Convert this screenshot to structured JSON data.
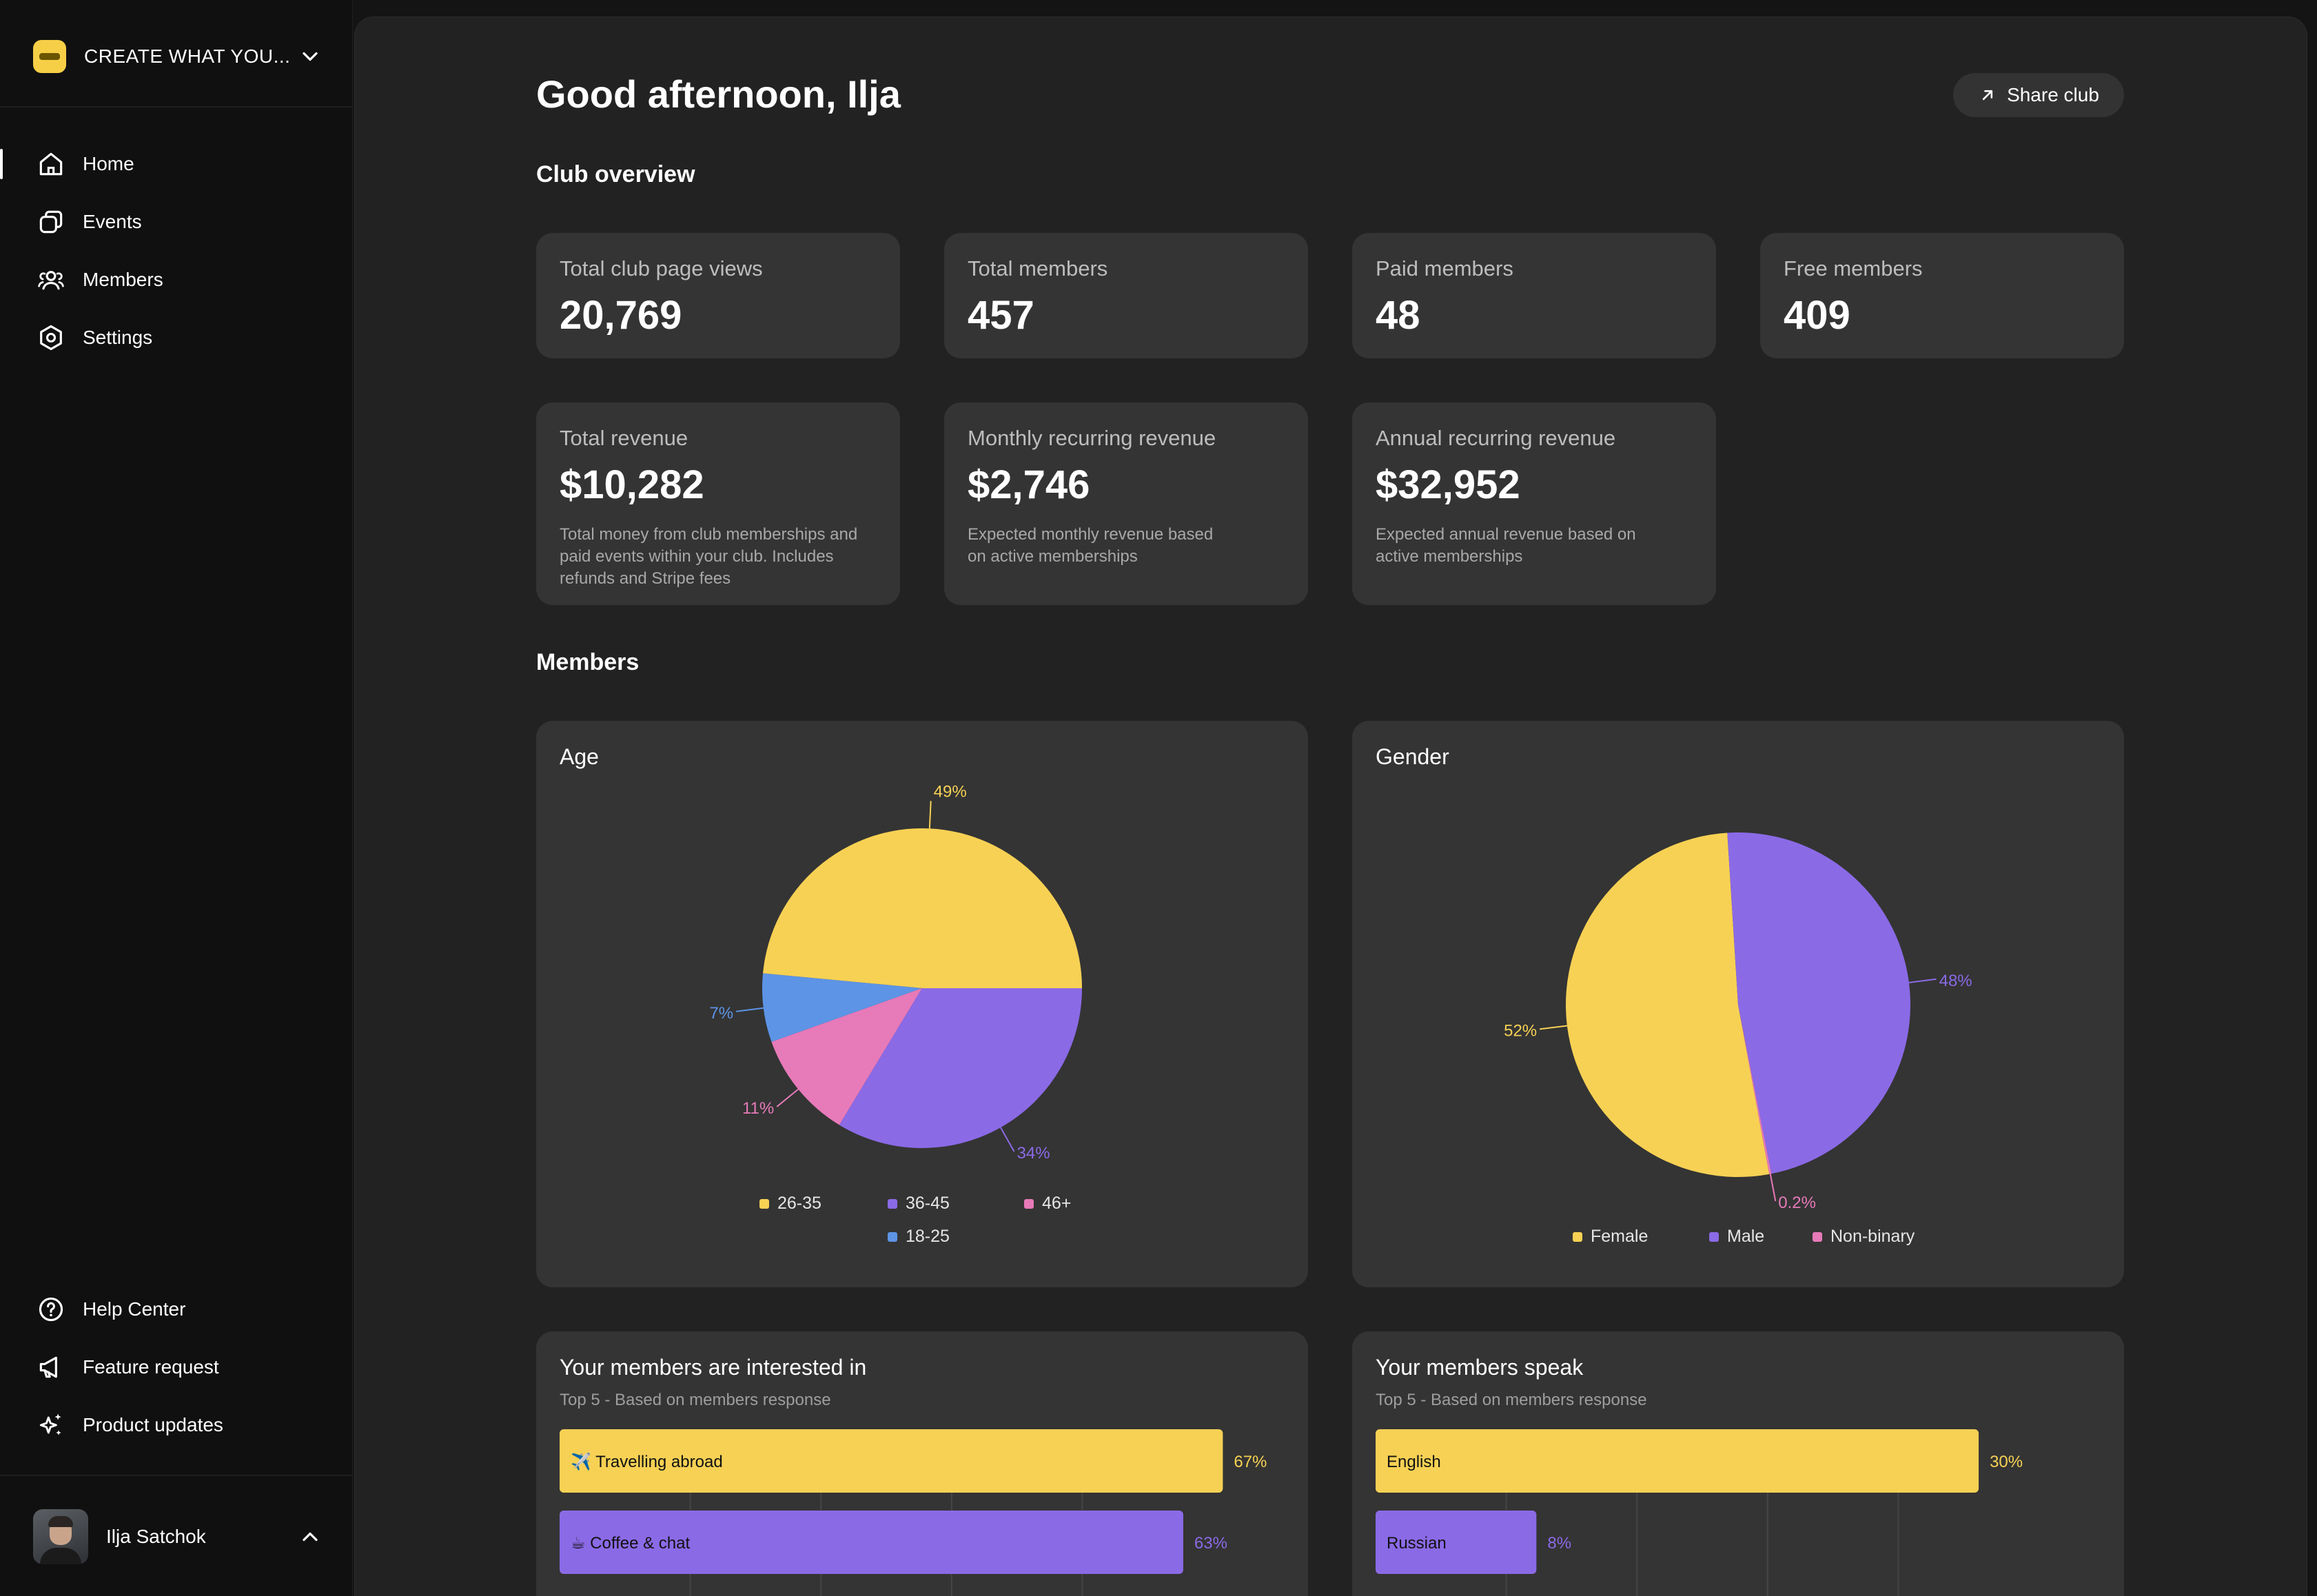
{
  "sidebar": {
    "club_name": "CREATE WHAT YOU...",
    "nav": [
      {
        "label": "Home",
        "icon": "home-icon",
        "active": true
      },
      {
        "label": "Events",
        "icon": "events-icon",
        "active": false
      },
      {
        "label": "Members",
        "icon": "members-icon",
        "active": false
      },
      {
        "label": "Settings",
        "icon": "settings-icon",
        "active": false
      }
    ],
    "bottom_nav": [
      {
        "label": "Help Center",
        "icon": "help-icon"
      },
      {
        "label": "Feature request",
        "icon": "megaphone-icon"
      },
      {
        "label": "Product updates",
        "icon": "sparkles-icon"
      }
    ],
    "user_name": "Ilja Satchok"
  },
  "header": {
    "greeting": "Good afternoon, Ilja",
    "share_label": "Share club"
  },
  "overview": {
    "title": "Club overview",
    "stats": [
      {
        "label": "Total club page views",
        "value": "20,769"
      },
      {
        "label": "Total members",
        "value": "457"
      },
      {
        "label": "Paid members",
        "value": "48"
      },
      {
        "label": "Free members",
        "value": "409"
      }
    ],
    "revenue": [
      {
        "label": "Total revenue",
        "value": "$10,282",
        "desc": "Total money from club memberships and paid events within your club. Includes refunds and Stripe fees"
      },
      {
        "label": "Monthly recurring revenue",
        "value": "$2,746",
        "desc": "Expected monthly revenue based on active memberships"
      },
      {
        "label": "Annual recurring revenue",
        "value": "$32,952",
        "desc": "Expected annual revenue based on active memberships"
      }
    ]
  },
  "members": {
    "title": "Members"
  },
  "colors": {
    "yellow": "#f7d154",
    "purple": "#8b6ae6",
    "pink": "#e77ab9",
    "blue": "#5d94e6"
  },
  "chart_data": [
    {
      "type": "pie",
      "title": "Age",
      "slices": [
        {
          "label": "26-35",
          "value": 49,
          "color": "#f7d154"
        },
        {
          "label": "18-25",
          "value": 7,
          "color": "#5d94e6"
        },
        {
          "label": "46+",
          "value": 11,
          "color": "#e77ab9"
        },
        {
          "label": "36-45",
          "value": 34,
          "color": "#8b6ae6"
        }
      ],
      "legend": [
        "26-35",
        "36-45",
        "46+",
        "18-25"
      ]
    },
    {
      "type": "pie",
      "title": "Gender",
      "slices": [
        {
          "label": "Female",
          "value": 52,
          "color": "#f7d154"
        },
        {
          "label": "Non-binary",
          "value": 0.2,
          "color": "#e77ab9"
        },
        {
          "label": "Male",
          "value": 48,
          "color": "#8b6ae6"
        }
      ],
      "legend": [
        "Female",
        "Male",
        "Non-binary"
      ]
    },
    {
      "type": "bar",
      "orientation": "horizontal",
      "title": "Your members are interested in",
      "subtitle": "Top 5 - Based on members response",
      "categories": [
        "✈️ Travelling abroad",
        "☕ Coffee & chat"
      ],
      "values": [
        67,
        63
      ],
      "colors": [
        "#f7d154",
        "#8b6ae6"
      ]
    },
    {
      "type": "bar",
      "orientation": "horizontal",
      "title": "Your members speak",
      "subtitle": "Top 5 - Based on members response",
      "categories": [
        "English",
        "Russian"
      ],
      "values": [
        30,
        8
      ],
      "colors": [
        "#f7d154",
        "#8b6ae6"
      ]
    }
  ]
}
